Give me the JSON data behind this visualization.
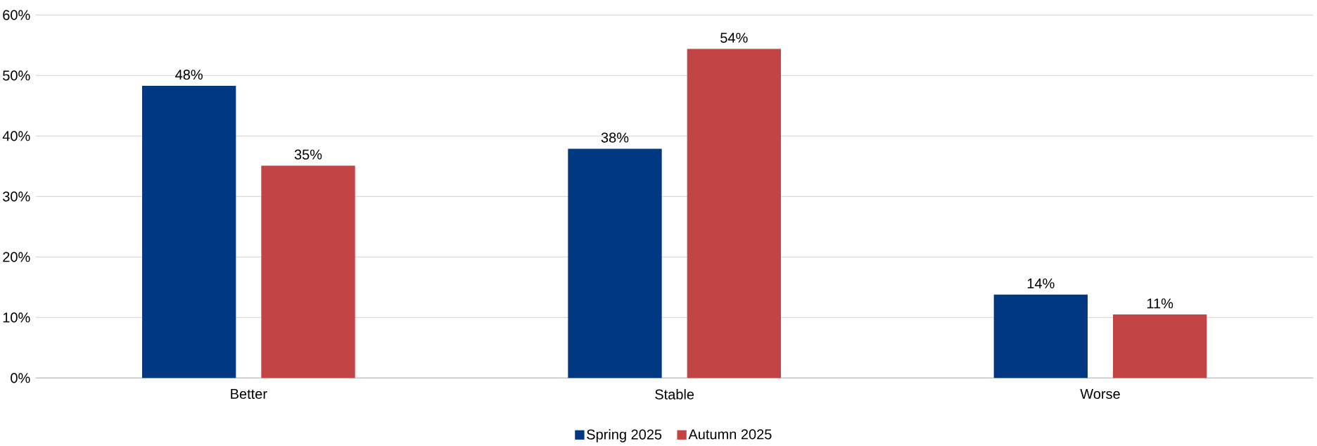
{
  "chart_data": {
    "type": "bar",
    "categories": [
      "Better",
      "Stable",
      "Worse"
    ],
    "series": [
      {
        "name": "Spring 2025",
        "color": "#003882",
        "values": [
          48.3,
          37.9,
          13.8
        ],
        "value_labels": [
          "48%",
          "38%",
          "14%"
        ]
      },
      {
        "name": "Autumn 2025",
        "color": "#c34444",
        "values": [
          35.1,
          54.4,
          10.5
        ],
        "value_labels": [
          "35%",
          "54%",
          "11%"
        ]
      }
    ],
    "ylim": [
      0,
      60
    ],
    "yticks": [
      {
        "value": 0,
        "label": "0%"
      },
      {
        "value": 10,
        "label": "10%"
      },
      {
        "value": 20,
        "label": "20%"
      },
      {
        "value": 30,
        "label": "30%"
      },
      {
        "value": 40,
        "label": "40%"
      },
      {
        "value": 50,
        "label": "50%"
      },
      {
        "value": 60,
        "label": "60%"
      }
    ],
    "grid": "y",
    "legend": "bottom"
  }
}
